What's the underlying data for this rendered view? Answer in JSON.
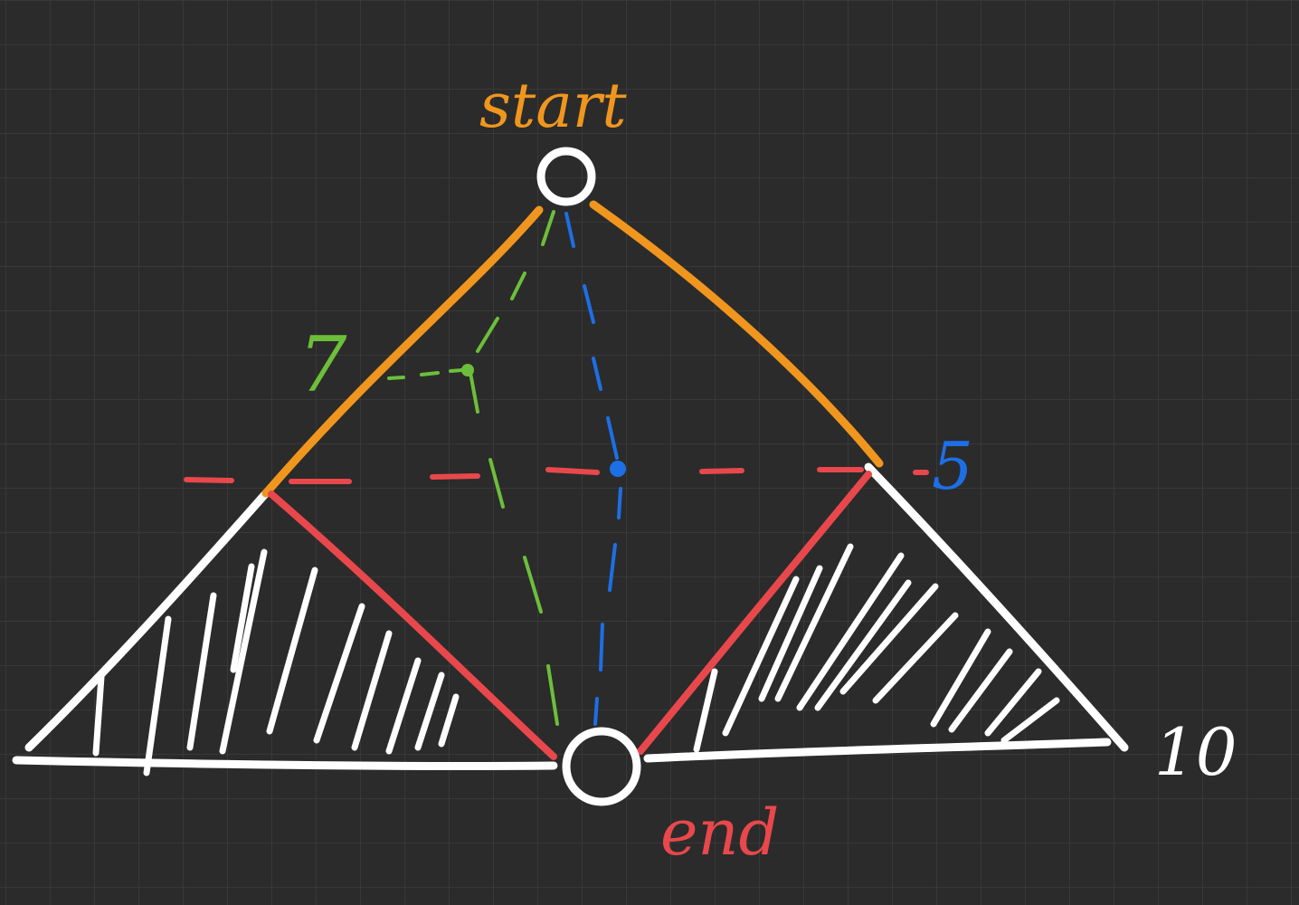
{
  "labels": {
    "start": "start",
    "end": "end",
    "seven": "7",
    "five": "5",
    "ten": "10"
  },
  "colors": {
    "background": "#2b2b2b",
    "grid": "#3d3d3d",
    "white": "#ffffff",
    "orange": "#f0961e",
    "red": "#e8484c",
    "green": "#6cbf3a",
    "blue": "#1d6fe6"
  }
}
